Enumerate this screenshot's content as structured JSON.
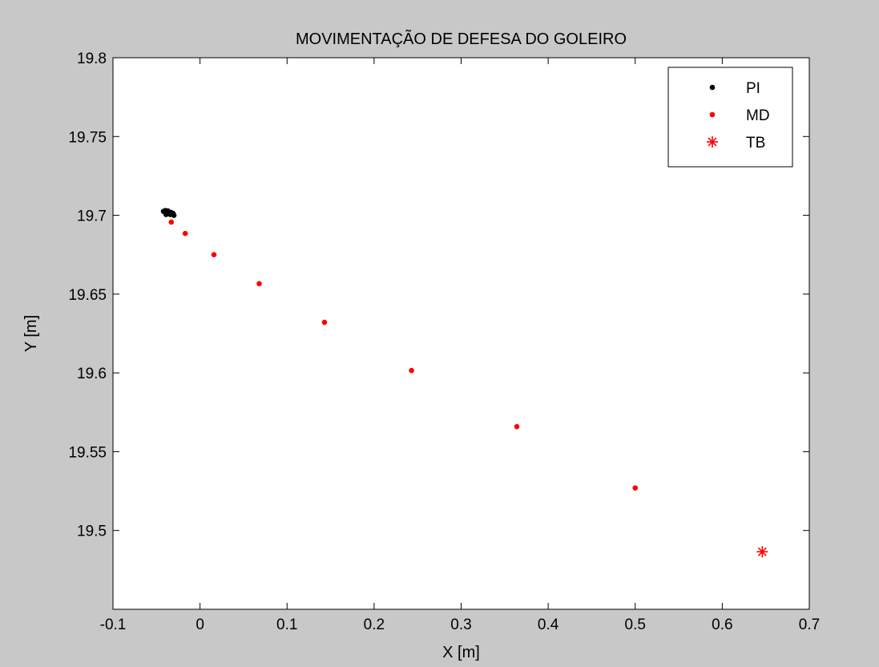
{
  "chart_data": {
    "type": "scatter",
    "title": "MOVIMENTAÇÃO DE DEFESA DO GOLEIRO",
    "xlabel": "X [m]",
    "ylabel": "Y [m]",
    "xlim": [
      -0.1,
      0.7
    ],
    "ylim": [
      19.45,
      19.8
    ],
    "xticks": [
      -0.1,
      0,
      0.1,
      0.2,
      0.3,
      0.4,
      0.5,
      0.6,
      0.7
    ],
    "xtick_labels": [
      "-0.1",
      "0",
      "0.1",
      "0.2",
      "0.3",
      "0.4",
      "0.5",
      "0.6",
      "0.7"
    ],
    "yticks": [
      19.5,
      19.55,
      19.6,
      19.65,
      19.7,
      19.75,
      19.8
    ],
    "ytick_labels": [
      "19.5",
      "19.55",
      "19.6",
      "19.65",
      "19.7",
      "19.75",
      "19.8"
    ],
    "grid": false,
    "legend_position": "top-right",
    "series": [
      {
        "name": "PI",
        "marker": "dot",
        "color": "#000000",
        "points": [
          [
            -0.042,
            19.7025
          ],
          [
            -0.04,
            19.703
          ],
          [
            -0.038,
            19.7015
          ],
          [
            -0.037,
            19.7028
          ],
          [
            -0.036,
            19.701
          ],
          [
            -0.035,
            19.702
          ],
          [
            -0.034,
            19.7005
          ],
          [
            -0.033,
            19.7018
          ],
          [
            -0.032,
            19.701
          ],
          [
            -0.031,
            19.7012
          ],
          [
            -0.03,
            19.7
          ],
          [
            -0.039,
            19.7005
          ]
        ]
      },
      {
        "name": "MD",
        "marker": "dot",
        "color": "#ff0000",
        "points": [
          [
            -0.033,
            19.6957
          ],
          [
            -0.017,
            19.6885
          ],
          [
            0.016,
            19.675
          ],
          [
            0.068,
            19.6566
          ],
          [
            0.143,
            19.6321
          ],
          [
            0.243,
            19.6015
          ],
          [
            0.364,
            19.5659
          ],
          [
            0.5,
            19.527
          ]
        ]
      },
      {
        "name": "TB",
        "marker": "asterisk",
        "color": "#ff0000",
        "points": [
          [
            0.646,
            19.4865
          ]
        ]
      }
    ]
  }
}
